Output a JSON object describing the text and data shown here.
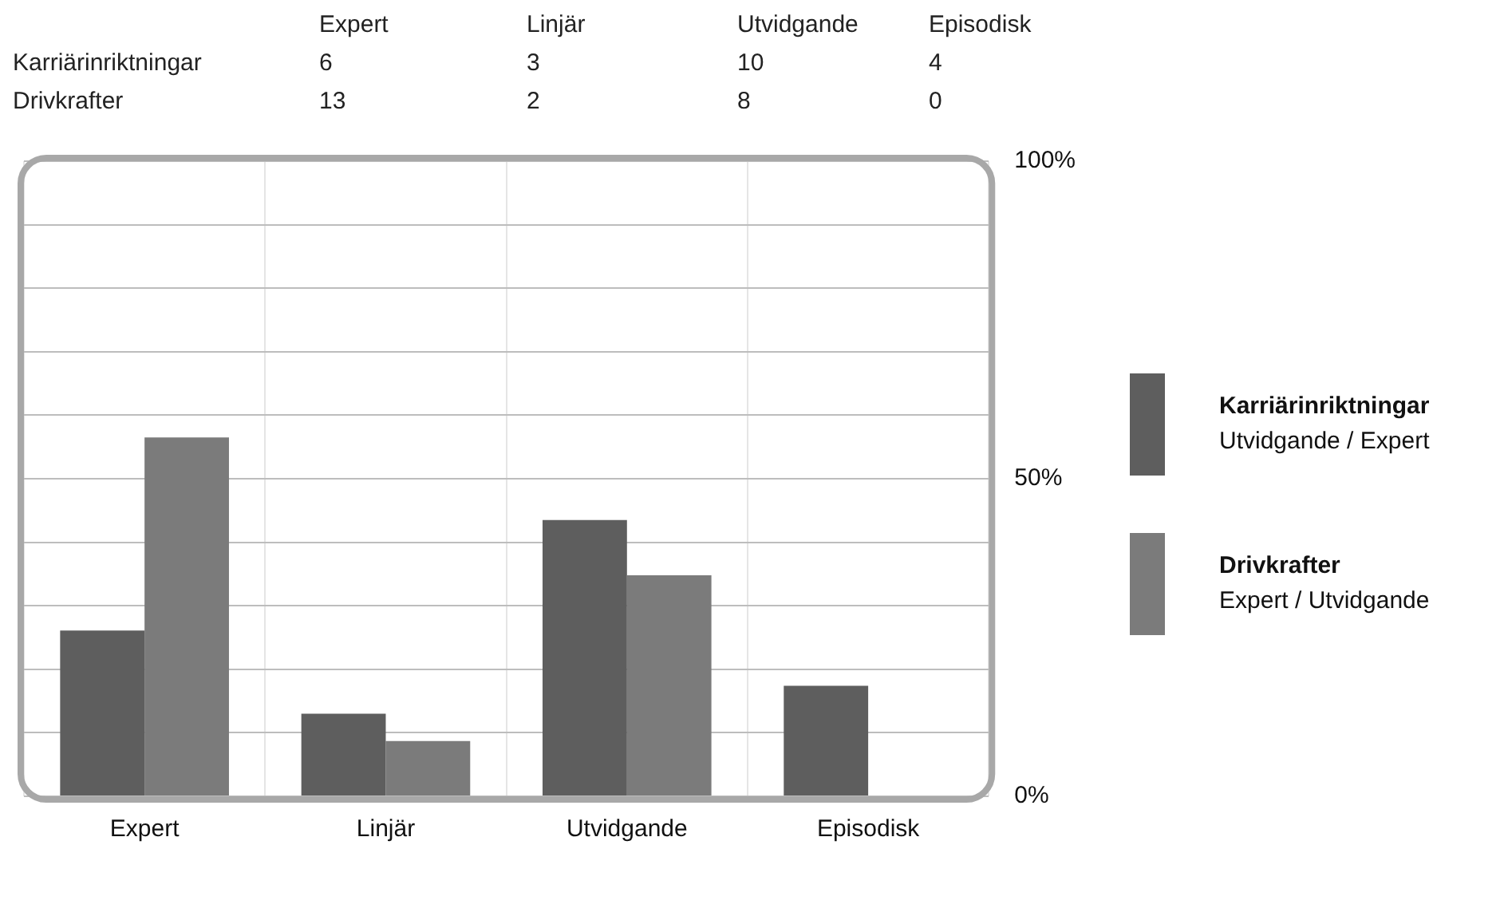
{
  "chart_data": [
    {
      "type": "heatmap",
      "categories": [
        "Expert",
        "Linjär",
        "Utvidgande",
        "Episodisk"
      ],
      "y_categories": [
        "Karriärinriktningar",
        "Drivkrafter"
      ],
      "cells": [
        [
          6,
          3,
          10,
          4
        ],
        [
          13,
          2,
          8,
          0
        ]
      ],
      "data_labels": true
    },
    {
      "type": "bar",
      "categories": [
        "Expert",
        "Linjär",
        "Utvidgande",
        "Episodisk"
      ],
      "series": [
        {
          "name": "Karriärinriktningar",
          "color": "#5e5e5e",
          "values": [
            26.1,
            13.0,
            43.5,
            17.4
          ]
        },
        {
          "name": "Drivkrafter",
          "color": "#7b7b7b",
          "values": [
            56.5,
            8.7,
            34.8,
            0
          ]
        }
      ],
      "ylim": [
        0,
        100
      ],
      "yticks": [
        {
          "value": 0,
          "label": "0%"
        },
        {
          "value": 10,
          "label": null
        },
        {
          "value": 20,
          "label": null
        },
        {
          "value": 30,
          "label": null
        },
        {
          "value": 40,
          "label": null
        },
        {
          "value": 50,
          "label": "50%"
        },
        {
          "value": 60,
          "label": null
        },
        {
          "value": 70,
          "label": null
        },
        {
          "value": 80,
          "label": null
        },
        {
          "value": 90,
          "label": null
        },
        {
          "value": 100,
          "label": "100%"
        }
      ],
      "grid": true,
      "legend": "right",
      "annotations": [
        "Utvidgande / Expert",
        "Expert / Utvidgande"
      ]
    }
  ]
}
